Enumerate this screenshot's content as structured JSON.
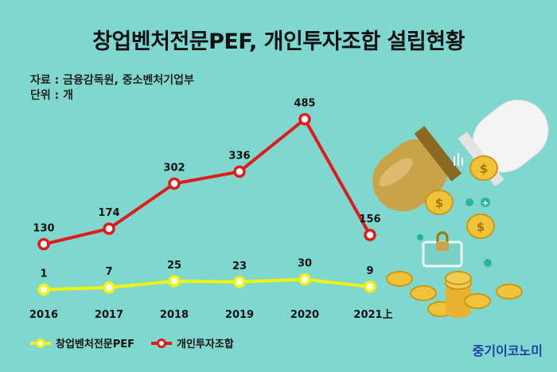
{
  "title": "창업벤처전문PEF, 개인투자조합 설립현황",
  "source": "자료 : 금융감독원, 중소벤처기업부",
  "unit": "단위 : 개",
  "brand": "중기이코노미",
  "chart_data": {
    "type": "line",
    "categories": [
      "2016",
      "2017",
      "2018",
      "2019",
      "2020",
      "2021上"
    ],
    "series": [
      {
        "name": "창업벤처전문PEF",
        "values": [
          1,
          7,
          25,
          23,
          30,
          9
        ],
        "color": "#f2f20a"
      },
      {
        "name": "개인투자조합",
        "values": [
          130,
          174,
          302,
          336,
          485,
          156
        ],
        "color": "#e01b1b"
      }
    ],
    "xlabel": "",
    "ylabel": "",
    "grid": false,
    "legend": "bottom-left"
  },
  "decoration": {
    "illustration": "capsule-pill-with-gold-coins",
    "colors": {
      "background": "#7fd8cf",
      "capsule_gold": "#c9a24a",
      "capsule_white": "#f4f4f4",
      "coin": "#f0c33a"
    }
  }
}
